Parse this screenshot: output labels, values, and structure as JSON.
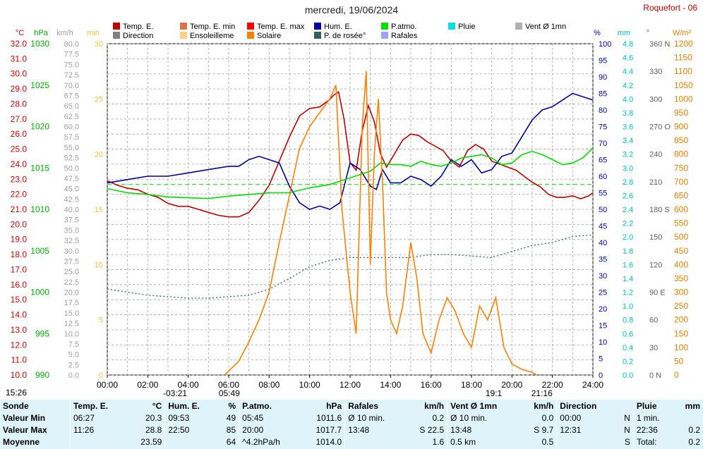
{
  "header": {
    "title": "mercredi, 19/06/2024",
    "station": "Roquefort - 06"
  },
  "legend_row1": [
    {
      "label": "Temp. E.",
      "color": "#c00000"
    },
    {
      "label": "Temp. E. min",
      "color": "#e07050"
    },
    {
      "label": "Temp. E. max",
      "color": "#ff0000"
    },
    {
      "label": "Hum. E.",
      "color": "#0000a0"
    },
    {
      "label": "P.atmo.",
      "color": "#00dd00"
    },
    {
      "label": "Pluie",
      "color": "#00e0e0"
    },
    {
      "label": "Vent Ø 1mn",
      "color": "#b0b0b0"
    }
  ],
  "legend_row2": [
    {
      "label": "Direction",
      "color": "#808080"
    },
    {
      "label": "Ensoleilleme",
      "color": "#ffd080"
    },
    {
      "label": "Solaire",
      "color": "#ff8000"
    },
    {
      "label": "P. de rosée°",
      "color": "#306060"
    },
    {
      "label": "Rafales",
      "color": "#a0a0ff"
    }
  ],
  "axis_units": {
    "temp": "°C",
    "press": "hPa",
    "wind": "km/h",
    "sun": "min",
    "hum": "%",
    "rain": "mm",
    "dir": "°",
    "solar": "W/m²"
  },
  "sun_events": {
    "sunrise": "05:49",
    "moonrise": "-03:21",
    "sunset": "21:16",
    "moonset": "19:1",
    "current_time": "15:26"
  },
  "chart_data": {
    "type": "line",
    "x_axis": {
      "labels": [
        "00:00",
        "02:00",
        "04:00",
        "06:00",
        "08:00",
        "10:00",
        "12:00",
        "14:00",
        "16:00",
        "18:00",
        "20:00",
        "22:00",
        "24:00"
      ],
      "range": [
        0,
        24
      ]
    },
    "axes": {
      "temp": {
        "label": "°C",
        "range": [
          10,
          32
        ],
        "ticks": [
          "10.0",
          "11.0",
          "12.0",
          "13.0",
          "14.0",
          "15.0",
          "16.0",
          "17.0",
          "18.0",
          "19.0",
          "20.0",
          "21.0",
          "22.0",
          "23.0",
          "24.0",
          "25.0",
          "26.0",
          "27.0",
          "28.0",
          "29.0",
          "30.0",
          "31.0",
          "32.0"
        ]
      },
      "pressure": {
        "label": "hPa",
        "range": [
          990,
          1030
        ],
        "ticks": [
          "990",
          "995",
          "1000",
          "1005",
          "1010",
          "1015",
          "1020",
          "1025",
          "1030"
        ]
      },
      "wind": {
        "label": "km/h",
        "range": [
          0,
          80
        ],
        "ticks": [
          "0.0",
          "2.5",
          "5.0",
          "7.5",
          "10.0",
          "12.5",
          "15.0",
          "17.5",
          "20.0",
          "22.5",
          "25.0",
          "27.5",
          "30.0",
          "32.5",
          "35.0",
          "37.5",
          "40.0",
          "42.5",
          "45.0",
          "47.5",
          "50.0",
          "52.5",
          "55.0",
          "57.5",
          "60.0",
          "62.5",
          "65.0",
          "67.5",
          "70.0",
          "72.5",
          "75.0",
          "77.5",
          "80.0"
        ]
      },
      "sunshine": {
        "label": "min",
        "range": [
          0,
          30
        ],
        "ticks": [
          "0",
          "5",
          "10",
          "15",
          "20",
          "25",
          "30"
        ]
      },
      "humidity": {
        "label": "%",
        "range": [
          0,
          100
        ],
        "ticks": [
          "0",
          "5",
          "10",
          "15",
          "20",
          "25",
          "30",
          "35",
          "40",
          "45",
          "50",
          "55",
          "60",
          "65",
          "70",
          "75",
          "80",
          "85",
          "90",
          "95",
          "100"
        ]
      },
      "rain": {
        "label": "mm",
        "range": [
          0,
          5
        ],
        "ticks": [
          "0.0",
          "0.2",
          "0.4",
          "0.6",
          "0.8",
          "1.0",
          "1.2",
          "1.4",
          "1.6",
          "1.8",
          "2.0",
          "2.2",
          "2.4",
          "2.6",
          "2.8",
          "3.0",
          "3.2",
          "3.4",
          "3.6",
          "3.8",
          "4.0",
          "4.2",
          "4.4",
          "4.6",
          "4.8"
        ]
      },
      "direction": {
        "label": "°",
        "range": [
          0,
          360
        ],
        "ticks": [
          "0 N",
          "30",
          "60",
          "90 E",
          "120",
          "150",
          "180 S",
          "210",
          "240",
          "270 O",
          "300",
          "330",
          "360 N"
        ]
      },
      "solar": {
        "label": "W/m²",
        "range": [
          0,
          1200
        ],
        "ticks": [
          "0",
          "50",
          "100",
          "150",
          "200",
          "250",
          "300",
          "350",
          "400",
          "450",
          "500",
          "550",
          "600",
          "650",
          "700",
          "750",
          "800",
          "850",
          "900",
          "950",
          "1000",
          "1050",
          "1100",
          "1150",
          "1200"
        ]
      }
    },
    "series": [
      {
        "name": "Temp. E.",
        "axis": "temp",
        "color": "#c00000",
        "x": [
          0,
          0.5,
          1,
          1.5,
          2,
          2.5,
          3,
          3.5,
          4,
          4.5,
          5,
          5.5,
          6,
          6.5,
          7,
          7.5,
          8,
          8.5,
          9,
          9.5,
          10,
          10.5,
          11,
          11.2,
          11.43,
          11.7,
          12,
          12.3,
          12.6,
          12.9,
          13.2,
          13.5,
          13.8,
          14.2,
          14.6,
          15,
          15.4,
          15.8,
          16.2,
          16.6,
          17,
          17.4,
          17.8,
          18.2,
          18.6,
          19,
          19.4,
          19.8,
          20.2,
          20.6,
          21,
          21.4,
          21.8,
          22.2,
          22.6,
          23,
          23.4,
          23.8,
          24
        ],
        "y": [
          22.9,
          22.6,
          22.4,
          22.3,
          22.0,
          21.8,
          21.4,
          21.2,
          21.2,
          21.0,
          20.8,
          20.6,
          20.5,
          20.5,
          20.8,
          21.6,
          22.6,
          24.2,
          25.8,
          27.2,
          27.7,
          27.8,
          28.3,
          28.6,
          28.8,
          27.0,
          24.1,
          23.6,
          26.2,
          27.9,
          26.8,
          24.7,
          23.8,
          24.7,
          25.6,
          26.0,
          25.9,
          25.5,
          25.2,
          24.9,
          24.2,
          23.8,
          24.9,
          25.3,
          25.0,
          24.2,
          24.0,
          23.8,
          23.6,
          23.2,
          22.8,
          22.5,
          22.0,
          21.8,
          21.8,
          21.9,
          21.7,
          21.9,
          22.1
        ]
      },
      {
        "name": "Hum. E.",
        "axis": "humidity",
        "color": "#0000a0",
        "x": [
          0,
          1,
          2,
          3,
          4,
          5,
          6,
          6.5,
          7,
          7.5,
          8,
          8.5,
          9,
          9.5,
          10,
          10.5,
          11,
          11.5,
          12,
          12.5,
          13,
          13.3,
          13.6,
          14,
          14.5,
          15,
          15.5,
          16,
          16.5,
          17,
          17.5,
          18,
          18.5,
          19,
          19.5,
          20,
          20.5,
          21,
          21.5,
          22,
          22.5,
          23,
          23.5,
          24
        ],
        "y": [
          58,
          59,
          60,
          60,
          61,
          62,
          63,
          63,
          65,
          66,
          65,
          64,
          57,
          52,
          50,
          51,
          50,
          52,
          64,
          62,
          57,
          56,
          62,
          58,
          58,
          60,
          59,
          57,
          60,
          65,
          63,
          65,
          61,
          62,
          66,
          67,
          72,
          77,
          80,
          81,
          83,
          85,
          84,
          83
        ]
      },
      {
        "name": "P.atmo.",
        "axis": "pressure",
        "color": "#00dd00",
        "x": [
          0,
          1,
          2,
          3,
          4,
          5,
          6,
          7,
          8,
          9,
          10,
          11,
          12,
          12.5,
          13,
          13.5,
          14,
          14.5,
          15,
          15.5,
          16,
          16.5,
          17,
          17.5,
          18,
          18.5,
          19,
          19.5,
          20,
          20.5,
          21,
          21.5,
          22,
          22.5,
          23,
          23.5,
          24
        ],
        "y": [
          1012.5,
          1012.0,
          1011.8,
          1011.5,
          1011.4,
          1011.3,
          1011.6,
          1011.8,
          1012.0,
          1012.0,
          1012.6,
          1013.0,
          1013.8,
          1014.2,
          1014.6,
          1015.6,
          1015.4,
          1015.4,
          1015.2,
          1015.8,
          1015.4,
          1015.2,
          1015.6,
          1016.2,
          1016.4,
          1016.6,
          1016.2,
          1015.4,
          1015.6,
          1016.6,
          1017.0,
          1016.6,
          1016.0,
          1015.4,
          1015.6,
          1016.2,
          1017.4
        ]
      },
      {
        "name": "P. de rosée°",
        "axis": "temp",
        "color": "#306060",
        "x": [
          0,
          1,
          2,
          3,
          4,
          5,
          6,
          7,
          8,
          9,
          10,
          11,
          12,
          13,
          14,
          15,
          16,
          17,
          18,
          19,
          20,
          21,
          22,
          23,
          24
        ],
        "y": [
          15.7,
          15.5,
          15.3,
          15.2,
          15.1,
          15.1,
          15.2,
          15.3,
          15.7,
          16.4,
          17.2,
          17.6,
          17.8,
          17.8,
          17.8,
          17.8,
          18.0,
          18.0,
          17.9,
          17.8,
          18.2,
          18.6,
          18.8,
          19.2,
          19.3
        ]
      },
      {
        "name": "Solaire",
        "axis": "solar",
        "color": "#ff8000",
        "x": [
          5.8,
          6.5,
          7,
          7.5,
          8,
          8.5,
          9,
          9.5,
          10,
          10.5,
          11,
          11.3,
          11.6,
          12,
          12.3,
          12.6,
          12.8,
          13,
          13.2,
          13.4,
          13.6,
          13.8,
          14,
          14.3,
          14.6,
          15,
          15.3,
          15.6,
          16,
          16.4,
          16.8,
          17.2,
          17.6,
          18,
          18.4,
          18.8,
          19.2,
          19.6,
          20,
          20.5,
          21,
          21.2
        ],
        "y": [
          0,
          50,
          120,
          200,
          300,
          480,
          650,
          820,
          900,
          950,
          1000,
          1050,
          600,
          300,
          150,
          900,
          1100,
          400,
          800,
          1000,
          700,
          300,
          200,
          150,
          250,
          480,
          350,
          150,
          80,
          200,
          280,
          230,
          150,
          100,
          250,
          200,
          280,
          100,
          40,
          20,
          10,
          0
        ]
      },
      {
        "name": "Direction",
        "axis": "direction",
        "color": "#808080"
      },
      {
        "name": "Rafales",
        "axis": "wind",
        "color": "#a0a0ff"
      },
      {
        "name": "Pluie",
        "axis": "rain",
        "color": "#00e0e0"
      },
      {
        "name": "Ensoleilleme",
        "axis": "sunshine",
        "color": "#ffd080"
      },
      {
        "name": "Vent Ø 1mn",
        "axis": "wind",
        "color": "#b0b0b0"
      }
    ]
  },
  "stats_table": {
    "headers": [
      {
        "name": "Sonde",
        "unit": ""
      },
      {
        "name": "Temp. E.",
        "unit": "°C"
      },
      {
        "name": "Hum. E.",
        "unit": "%"
      },
      {
        "name": "P.atmo.",
        "unit": "hPa"
      },
      {
        "name": "Rafales",
        "unit": "km/h"
      },
      {
        "name": "Vent Ø 1mn",
        "unit": "km/h"
      },
      {
        "name": "Direction",
        "unit": ""
      },
      {
        "name": "Pluie",
        "unit": "mm"
      }
    ],
    "rows": [
      {
        "label": "Valeur Min",
        "cells": [
          [
            "06:27",
            "20.3"
          ],
          [
            "09:53",
            "49"
          ],
          [
            "05:45",
            "1011.6"
          ],
          [
            "Ø 10 min.",
            "0.2"
          ],
          [
            "Ø 10 min.",
            "0.0"
          ],
          [
            "00:00",
            "N"
          ],
          [
            "1 min.",
            ""
          ]
        ]
      },
      {
        "label": "Valeur Max",
        "cells": [
          [
            "11:26",
            "28.8"
          ],
          [
            "22:50",
            "85"
          ],
          [
            "20:00",
            "1017.7"
          ],
          [
            "13:48",
            "S 22.5"
          ],
          [
            "13:48",
            "S 9.7"
          ],
          [
            "12:31",
            "N"
          ],
          [
            "22:36",
            "0.2"
          ]
        ]
      },
      {
        "label": "Moyenne",
        "cells": [
          [
            "",
            "23.59"
          ],
          [
            "",
            "64"
          ],
          [
            "^4.2hPa/h",
            "1014.0"
          ],
          [
            "",
            "1.6"
          ],
          [
            "0.5 km",
            "0.5"
          ],
          [
            "",
            "S"
          ],
          [
            "Total:",
            "0.2"
          ]
        ]
      }
    ]
  }
}
